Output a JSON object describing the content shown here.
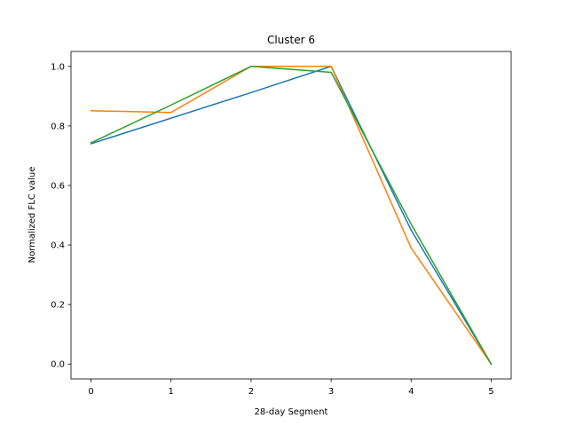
{
  "chart_data": {
    "type": "line",
    "title": "Cluster 6",
    "xlabel": "28-day Segment",
    "ylabel": "Normalized FLC value",
    "xlim": [
      -0.25,
      5.25
    ],
    "ylim": [
      -0.05,
      1.05
    ],
    "xticks": [
      0,
      1,
      2,
      3,
      4,
      5
    ],
    "yticks": [
      0.0,
      0.2,
      0.4,
      0.6,
      0.8,
      1.0
    ],
    "xtick_labels": [
      "0",
      "1",
      "2",
      "3",
      "4",
      "5"
    ],
    "ytick_labels": [
      "0.0",
      "0.2",
      "0.4",
      "0.6",
      "0.8",
      "1.0"
    ],
    "grid": false,
    "legend": "none",
    "x": [
      0,
      1,
      2,
      3,
      4,
      5
    ],
    "series": [
      {
        "color": "#1f77b4",
        "values": [
          0.74,
          0.826,
          0.912,
          1.0,
          0.45,
          0.0
        ]
      },
      {
        "color": "#ff7f0e",
        "values": [
          0.851,
          0.845,
          1.0,
          1.0,
          0.39,
          0.0
        ]
      },
      {
        "color": "#2ca02c",
        "values": [
          0.743,
          0.87,
          1.0,
          0.98,
          0.47,
          0.0
        ]
      }
    ]
  }
}
